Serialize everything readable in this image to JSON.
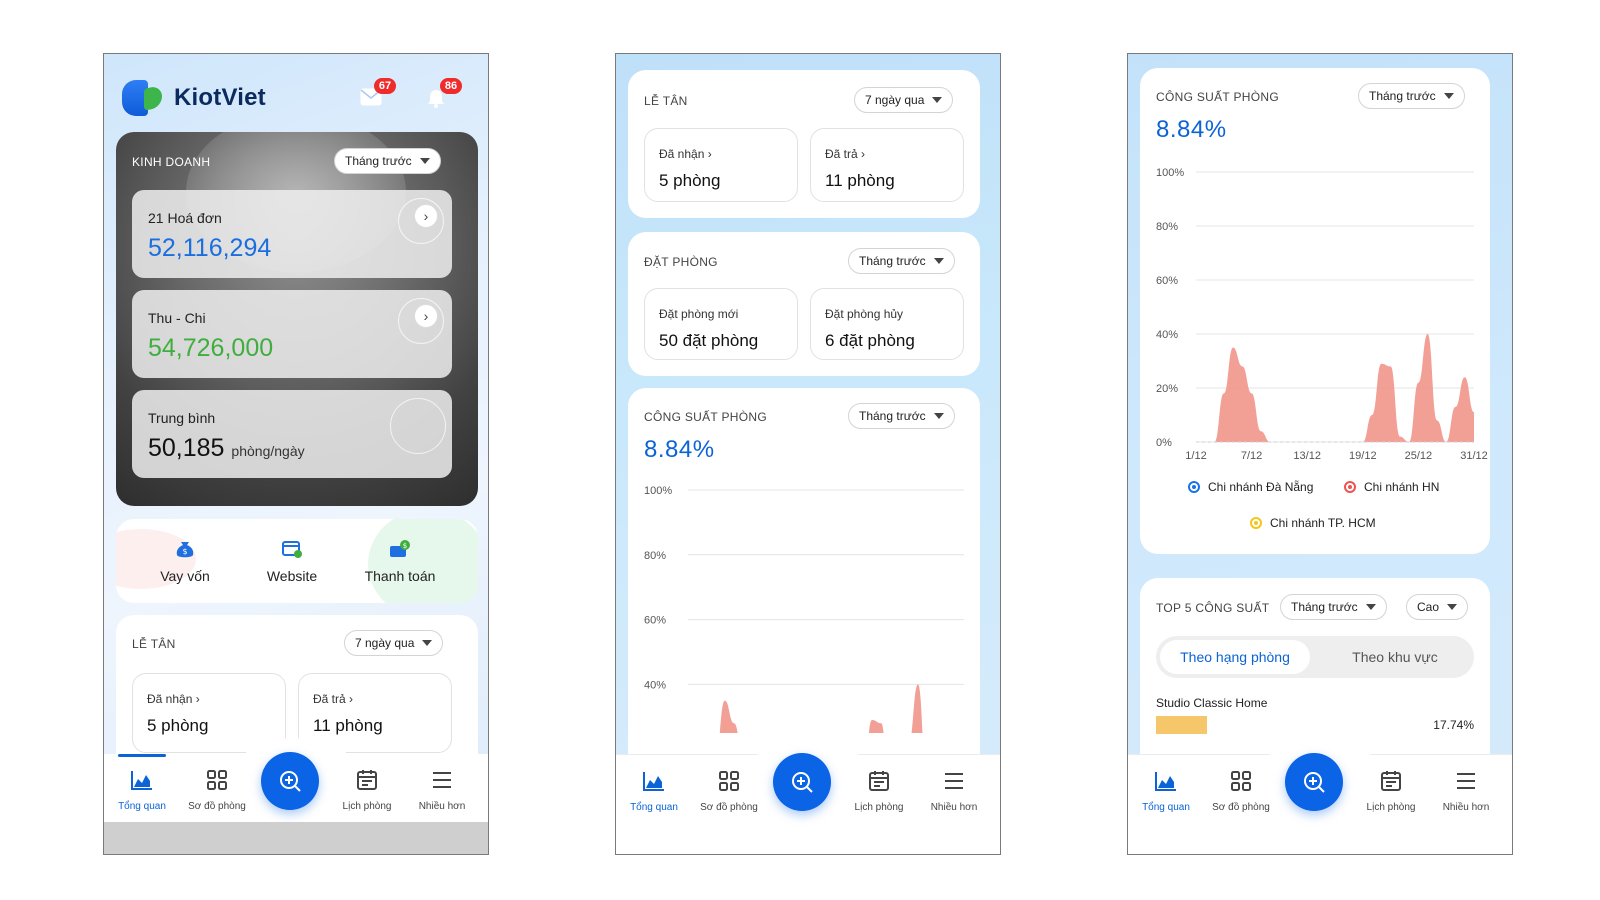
{
  "app": {
    "brand": "KiotViet",
    "mail_count": "67",
    "bell_count": "86"
  },
  "colors": {
    "primary": "#0b63d6",
    "green": "#3fae3f",
    "chart_fill": "#f19589"
  },
  "business": {
    "title": "KINH DOANH",
    "period": "Tháng trước",
    "invoice_label": "21 Hoá đơn",
    "invoice_value": "52,116,294",
    "cashflow_label": "Thu - Chi",
    "cashflow_value": "54,726,000",
    "avg_label": "Trung bình",
    "avg_value": "50,185",
    "avg_unit": "phòng/ngày"
  },
  "quick_actions": [
    {
      "label": "Vay vốn",
      "icon": "money-bag-icon"
    },
    {
      "label": "Website",
      "icon": "website-icon"
    },
    {
      "label": "Thanh toán",
      "icon": "payment-card-icon"
    }
  ],
  "reception": {
    "title": "LỄ TÂN",
    "period": "7 ngày qua",
    "received_label": "Đã nhận",
    "received_value": "5 phòng",
    "returned_label": "Đã trả",
    "returned_value": "11 phòng"
  },
  "booking": {
    "title": "ĐẶT PHÒNG",
    "period": "Tháng trước",
    "new_label": "Đặt phòng mới",
    "new_value": "50 đặt phòng",
    "cancel_label": "Đặt phòng hủy",
    "cancel_value": "6 đặt phòng"
  },
  "capacity": {
    "title": "CÔNG SUẤT PHÒNG",
    "period": "Tháng trước",
    "value": "8.84%",
    "y_ticks": [
      "100%",
      "80%",
      "60%",
      "40%",
      "20%",
      "0%"
    ],
    "x_ticks": [
      "1/12",
      "7/12",
      "13/12",
      "19/12",
      "25/12",
      "31/12"
    ],
    "legend": [
      {
        "name": "Chi nhánh Đà Nẵng",
        "color": "#1a73e8"
      },
      {
        "name": "Chi nhánh HN",
        "color": "#ef5350"
      },
      {
        "name": "Chi nhánh TP. HCM",
        "color": "#f5c518"
      }
    ]
  },
  "chart_data": {
    "type": "area",
    "title": "CÔNG SUẤT PHÒNG",
    "xlabel": "",
    "ylabel": "",
    "ylim": [
      0,
      100
    ],
    "x_range": [
      1,
      31
    ],
    "x": [
      1,
      2,
      3,
      4,
      5,
      6,
      7,
      8,
      9,
      10,
      11,
      12,
      13,
      14,
      15,
      16,
      17,
      18,
      19,
      20,
      21,
      22,
      23,
      24,
      25,
      26,
      27,
      28,
      29,
      30,
      31
    ],
    "series": [
      {
        "values": [
          0,
          0,
          0,
          18,
          35,
          28,
          18,
          4,
          0,
          0,
          0,
          0,
          0,
          0,
          0,
          0,
          0,
          0,
          0,
          10,
          29,
          28,
          2,
          0,
          22,
          40,
          8,
          0,
          13,
          24,
          11
        ]
      }
    ]
  },
  "top5": {
    "title": "TOP 5 CÔNG SUẤT",
    "period": "Tháng trước",
    "order": "Cao",
    "tab_active": "Theo hạng phòng",
    "tab_other": "Theo khu vực",
    "first_item": "Studio Classic Home",
    "first_value": "17.74%",
    "first_pct": 17.74
  },
  "nav": {
    "overview": "Tổng quan",
    "room_map": "Sơ đồ phòng",
    "schedule": "Lịch phòng",
    "more": "Nhiều hơn"
  }
}
